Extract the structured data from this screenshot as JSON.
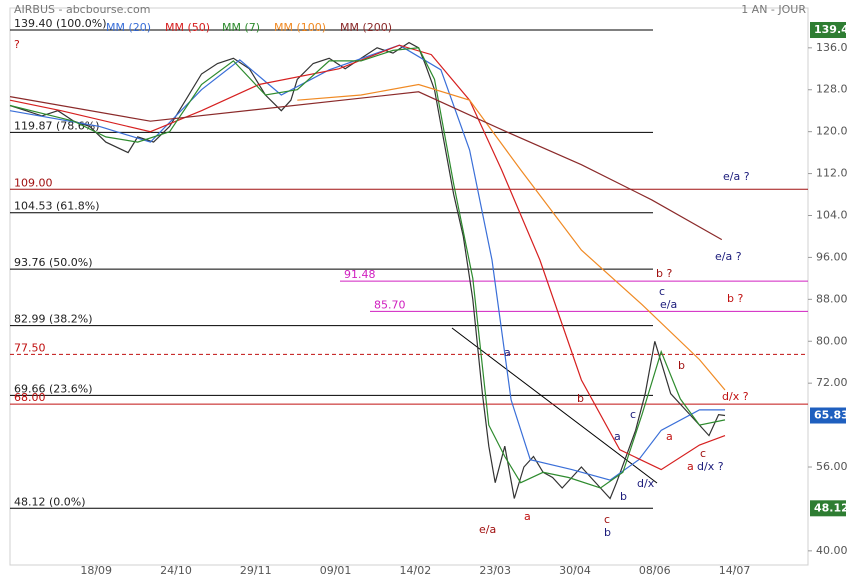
{
  "chart_data": {
    "type": "line",
    "title": "AIRBUS - abcbourse.com",
    "period": "1 AN - JOUR",
    "xlim": [
      0,
      250
    ],
    "ylim": [
      37.3,
      143.6
    ],
    "xticks": [
      {
        "value": 27,
        "label": "18/09"
      },
      {
        "value": 52,
        "label": "24/10"
      },
      {
        "value": 77,
        "label": "29/11"
      },
      {
        "value": 102,
        "label": "09/01"
      },
      {
        "value": 127,
        "label": "14/02"
      },
      {
        "value": 152,
        "label": "23/03"
      },
      {
        "value": 177,
        "label": "30/04"
      },
      {
        "value": 202,
        "label": "08/06"
      },
      {
        "value": 227,
        "label": "14/07"
      }
    ],
    "yticks": [
      {
        "value": 40,
        "label": "40.00"
      },
      {
        "value": 56,
        "label": "56.00"
      },
      {
        "value": 72,
        "label": "72.00"
      },
      {
        "value": 80,
        "label": "80.00"
      },
      {
        "value": 88,
        "label": "88.00"
      },
      {
        "value": 96,
        "label": "96.00"
      },
      {
        "value": 104,
        "label": "104.0"
      },
      {
        "value": 112,
        "label": "112.0"
      },
      {
        "value": 120,
        "label": "120.0"
      },
      {
        "value": 128,
        "label": "128.0"
      },
      {
        "value": 136,
        "label": "136.0"
      }
    ],
    "price": {
      "color": "#333333",
      "x": [
        0,
        5,
        10,
        15,
        20,
        25,
        30,
        37,
        40,
        45,
        50,
        55,
        60,
        65,
        70,
        75,
        77,
        80,
        85,
        88,
        90,
        95,
        100,
        105,
        110,
        115,
        120,
        125,
        128,
        130,
        133,
        136,
        139,
        142,
        145,
        148,
        150,
        152,
        155,
        158,
        161,
        164,
        167,
        170,
        173,
        176,
        179,
        182,
        185,
        188,
        190,
        193,
        196,
        199,
        202,
        204,
        207,
        210,
        213,
        216,
        219,
        222,
        224
      ],
      "values": [
        125,
        124,
        123,
        124,
        122,
        121,
        118,
        116,
        119,
        118,
        121,
        126,
        131,
        133,
        134,
        132,
        130,
        127,
        124,
        126,
        130,
        133,
        134,
        132,
        134,
        136,
        135,
        137,
        136,
        133,
        128,
        118,
        108,
        100,
        88,
        70,
        60,
        53,
        60,
        50,
        56,
        58,
        55,
        54,
        52,
        54,
        56,
        54,
        52,
        50,
        53,
        58,
        63,
        70,
        80,
        76,
        70,
        68,
        66,
        64,
        62,
        66,
        65.83
      ]
    },
    "series": [
      {
        "name": "MM (20)",
        "color": "#3a6fd8",
        "x": [
          0,
          28,
          44,
          60,
          72,
          85,
          100,
          122,
          135,
          144,
          151,
          157,
          163,
          176,
          188,
          197,
          204,
          216,
          224
        ],
        "values": [
          124,
          121,
          118,
          128,
          133.7,
          127,
          131.8,
          136.5,
          131.8,
          116.5,
          95.5,
          68.8,
          57.4,
          55.5,
          53.5,
          57.4,
          63,
          66.9,
          66.9
        ]
      },
      {
        "name": "MM (50)",
        "color": "#d62020",
        "x": [
          0,
          16,
          44,
          60,
          78,
          103,
          122,
          132,
          144,
          154,
          166,
          179,
          191,
          204,
          216,
          224
        ],
        "values": [
          126,
          124,
          120,
          124,
          129,
          132,
          136.5,
          134.7,
          126,
          112.7,
          95.5,
          72.6,
          59.3,
          55.5,
          60.2,
          62
        ]
      },
      {
        "name": "MM (7)",
        "color": "#2e8b2e",
        "x": [
          0,
          10,
          20,
          30,
          40,
          50,
          60,
          70,
          80,
          90,
          100,
          110,
          120,
          128,
          133,
          139,
          145,
          150,
          155,
          160,
          167,
          175,
          185,
          192,
          198,
          204,
          210,
          216,
          224
        ],
        "values": [
          125,
          123.5,
          122,
          119,
          118,
          120,
          129,
          133.5,
          127,
          128,
          133.5,
          133.5,
          135.5,
          136,
          130,
          110,
          92,
          64,
          58,
          53,
          55,
          54,
          52,
          55,
          66,
          78,
          69,
          64,
          65
        ]
      },
      {
        "name": "MM (100)",
        "color": "#f08a24",
        "x": [
          90,
          110,
          128,
          144,
          160,
          179,
          198,
          216,
          224
        ],
        "values": [
          126,
          127,
          129,
          126,
          112.7,
          97.4,
          87,
          76.5,
          70.7
        ]
      },
      {
        "name": "MM (200)",
        "color": "#8b2a2a",
        "x": [
          0,
          44,
          128,
          154,
          179,
          201,
          223
        ],
        "values": [
          126.7,
          122,
          127.6,
          120.4,
          113.7,
          107,
          99.4
        ]
      }
    ],
    "levels": [
      {
        "value": 139.4,
        "label": "139.40 (100.0%)",
        "color": "#000000"
      },
      {
        "value": 119.87,
        "label": "119.87 (78.6%)",
        "color": "#000000"
      },
      {
        "value": 109,
        "label": "109.00",
        "color": "#a01010"
      },
      {
        "value": 104.53,
        "label": "104.53 (61.8%)",
        "color": "#000000"
      },
      {
        "value": 93.76,
        "label": "93.76 (50.0%)",
        "color": "#000000"
      },
      {
        "value": 91.48,
        "label": "91.48",
        "color": "#d020c0"
      },
      {
        "value": 85.7,
        "label": "85.70",
        "color": "#d020c0"
      },
      {
        "value": 82.99,
        "label": "82.99 (38.2%)",
        "color": "#000000"
      },
      {
        "value": 77.5,
        "label": "77.50",
        "color": "#c01010",
        "dashed": true
      },
      {
        "value": 69.66,
        "label": "69.66 (23.6%)",
        "color": "#000000"
      },
      {
        "value": 68,
        "label": "68.00",
        "color": "#c01010"
      },
      {
        "value": 48.12,
        "label": "48.12 (0.0%)",
        "color": "#000000"
      }
    ],
    "price_tags": [
      {
        "value": 139.4,
        "color": "#2e7d32"
      },
      {
        "value": 65.83,
        "color": "#1f5fbf"
      },
      {
        "value": 48.12,
        "color": "#2e7d32"
      }
    ],
    "annotations": [
      {
        "text": "?",
        "color": "#c01010"
      },
      {
        "text": "e/a ?",
        "color": "#1a1a7a"
      },
      {
        "text": "e/a ?",
        "color": "#1a1a7a"
      },
      {
        "text": "b ?",
        "color": "#a01010"
      },
      {
        "text": "c",
        "color": "#1a1a7a"
      },
      {
        "text": "e/a",
        "color": "#1a1a7a"
      },
      {
        "text": "b ?",
        "color": "#c01010"
      },
      {
        "text": "a",
        "color": "#1a1a7a"
      },
      {
        "text": "b",
        "color": "#a01010"
      },
      {
        "text": "b",
        "color": "#a01010"
      },
      {
        "text": "d/x ?",
        "color": "#c01010"
      },
      {
        "text": "a",
        "color": "#1a1a7a"
      },
      {
        "text": "c",
        "color": "#1a1a7a"
      },
      {
        "text": "a",
        "color": "#c01010"
      },
      {
        "text": "c",
        "color": "#a01010"
      },
      {
        "text": "a",
        "color": "#c01010"
      },
      {
        "text": "d/x ?",
        "color": "#1a1a7a"
      },
      {
        "text": "d/x",
        "color": "#1a1a7a"
      },
      {
        "text": "b",
        "color": "#1a1a7a"
      },
      {
        "text": "c",
        "color": "#a01010"
      },
      {
        "text": "b",
        "color": "#1a1a7a"
      },
      {
        "text": "a",
        "color": "#c01010"
      },
      {
        "text": "e/a",
        "color": "#a01010"
      }
    ]
  }
}
